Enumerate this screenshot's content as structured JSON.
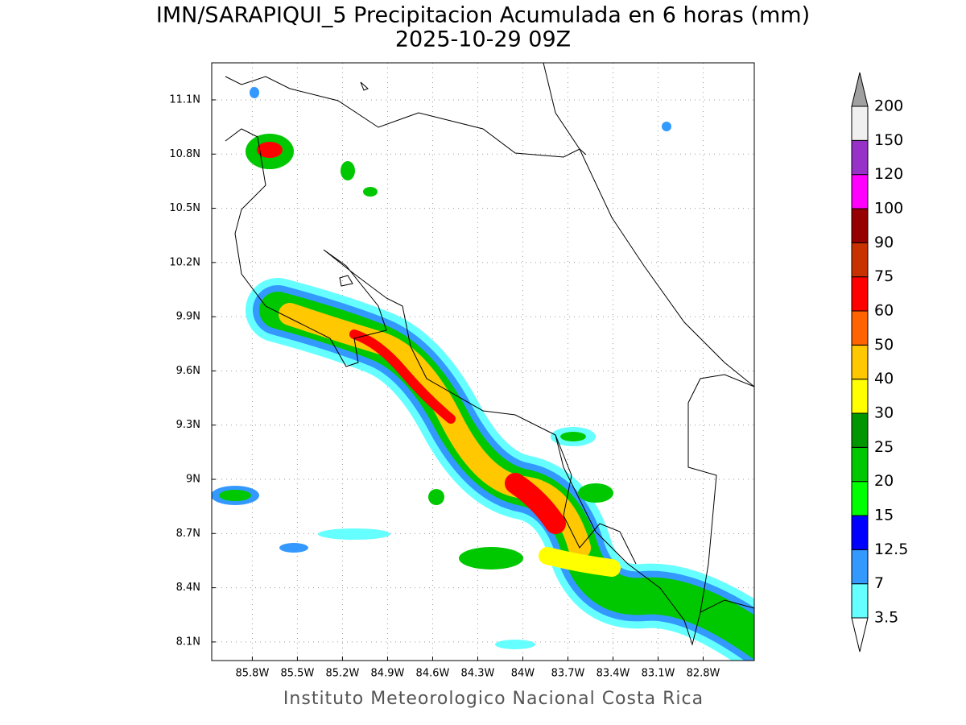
{
  "map": {
    "title": "IMN/SARAPIQUI_5 Precipitacion Acumulada en 6 horas (mm)",
    "subtitle": "2025-10-29 09Z",
    "credit": "Instituto Meteorologico Nacional Costa Rica",
    "xlim": [
      -86.07,
      -82.46
    ],
    "ylim": [
      7.997,
      11.305
    ],
    "xticks": [
      {
        "value": -85.8,
        "label": "85.8W"
      },
      {
        "value": -85.5,
        "label": "85.5W"
      },
      {
        "value": -85.2,
        "label": "85.2W"
      },
      {
        "value": -84.9,
        "label": "84.9W"
      },
      {
        "value": -84.6,
        "label": "84.6W"
      },
      {
        "value": -84.3,
        "label": "84.3W"
      },
      {
        "value": -84,
        "label": "84W"
      },
      {
        "value": -83.7,
        "label": "83.7W"
      },
      {
        "value": -83.4,
        "label": "83.4W"
      },
      {
        "value": -83.1,
        "label": "83.1W"
      },
      {
        "value": -82.8,
        "label": "82.8W"
      }
    ],
    "yticks": [
      {
        "value": 8.1,
        "label": "8.1N"
      },
      {
        "value": 8.4,
        "label": "8.4N"
      },
      {
        "value": 8.7,
        "label": "8.7N"
      },
      {
        "value": 9,
        "label": "9N"
      },
      {
        "value": 9.3,
        "label": "9.3N"
      },
      {
        "value": 9.6,
        "label": "9.6N"
      },
      {
        "value": 9.9,
        "label": "9.9N"
      },
      {
        "value": 10.2,
        "label": "10.2N"
      },
      {
        "value": 10.5,
        "label": "10.5N"
      },
      {
        "value": 10.8,
        "label": "10.8N"
      },
      {
        "value": 11.1,
        "label": "11.1N"
      }
    ],
    "grid": true,
    "colorbar": {
      "levels": [
        3.5,
        7,
        12.5,
        15,
        20,
        25,
        30,
        40,
        50,
        60,
        75,
        90,
        100,
        120,
        150,
        200
      ],
      "colors": [
        "#ffffff",
        "#66ffff",
        "#3399ff",
        "#0000ff",
        "#00ff00",
        "#00c800",
        "#009600",
        "#ffff00",
        "#ffc800",
        "#ff6400",
        "#ff0000",
        "#c83200",
        "#960000",
        "#ff00ff",
        "#9632c8",
        "#f0f0f0",
        "#a0a0a0"
      ]
    }
  }
}
